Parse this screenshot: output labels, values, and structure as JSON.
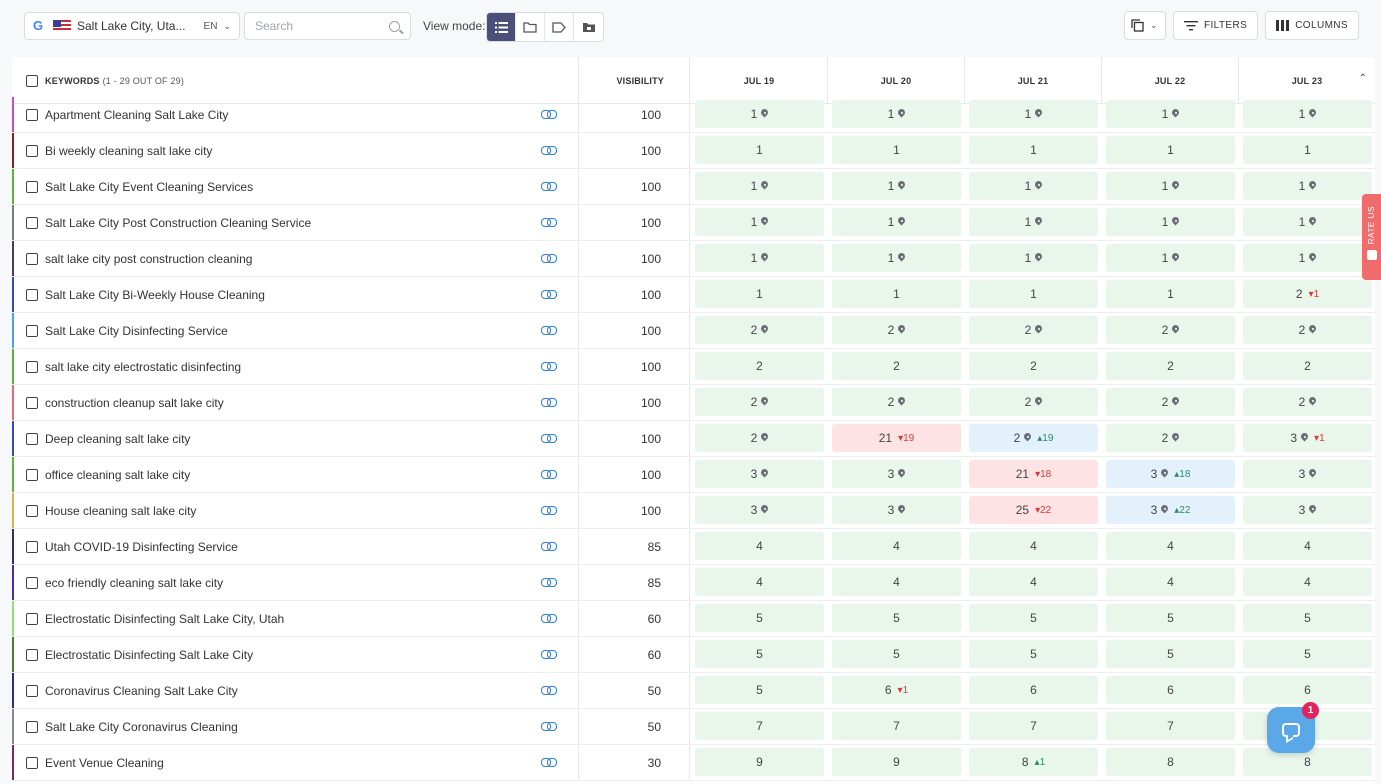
{
  "toolbar": {
    "location": "Salt Lake City, Utah",
    "location_display": "Salt Lake City, Uta...",
    "language": "EN",
    "search_placeholder": "Search",
    "view_mode_label": "View mode:",
    "view_modes": [
      "list",
      "folder",
      "tag",
      "group"
    ],
    "filters_label": "FILTERS",
    "columns_label": "COLUMNS"
  },
  "table": {
    "keywords_header": "KEYWORDS",
    "keywords_count": "(1 - 29 OUT OF 29)",
    "visibility_header": "VISIBILITY",
    "dates": [
      "JUL 19",
      "JUL 20",
      "JUL 21",
      "JUL 22",
      "JUL 23"
    ],
    "rows": [
      {
        "keyword": "Apartment Cleaning Salt Lake City",
        "color": "#c84fb6",
        "visibility": "100",
        "positions": [
          {
            "v": "1",
            "pin": true,
            "bg": "green"
          },
          {
            "v": "1",
            "pin": true,
            "bg": "green"
          },
          {
            "v": "1",
            "pin": true,
            "bg": "green"
          },
          {
            "v": "1",
            "pin": true,
            "bg": "green"
          },
          {
            "v": "1",
            "pin": true,
            "bg": "green"
          }
        ]
      },
      {
        "keyword": "Bi weekly cleaning salt lake city",
        "color": "#8a2020",
        "visibility": "100",
        "positions": [
          {
            "v": "1",
            "bg": "green"
          },
          {
            "v": "1",
            "bg": "green"
          },
          {
            "v": "1",
            "bg": "green"
          },
          {
            "v": "1",
            "bg": "green"
          },
          {
            "v": "1",
            "bg": "green"
          }
        ]
      },
      {
        "keyword": "Salt Lake City Event Cleaning Services",
        "color": "#5fb33a",
        "visibility": "100",
        "positions": [
          {
            "v": "1",
            "pin": true,
            "bg": "green"
          },
          {
            "v": "1",
            "pin": true,
            "bg": "green"
          },
          {
            "v": "1",
            "pin": true,
            "bg": "green"
          },
          {
            "v": "1",
            "pin": true,
            "bg": "green"
          },
          {
            "v": "1",
            "pin": true,
            "bg": "green"
          }
        ]
      },
      {
        "keyword": "Salt Lake City Post Construction Cleaning Service",
        "color": "#7a7a7a",
        "visibility": "100",
        "positions": [
          {
            "v": "1",
            "pin": true,
            "bg": "green"
          },
          {
            "v": "1",
            "pin": true,
            "bg": "green"
          },
          {
            "v": "1",
            "pin": true,
            "bg": "green"
          },
          {
            "v": "1",
            "pin": true,
            "bg": "green"
          },
          {
            "v": "1",
            "pin": true,
            "bg": "green"
          }
        ]
      },
      {
        "keyword": "salt lake city post construction cleaning",
        "color": "#4a3c52",
        "visibility": "100",
        "positions": [
          {
            "v": "1",
            "pin": true,
            "bg": "green"
          },
          {
            "v": "1",
            "pin": true,
            "bg": "green"
          },
          {
            "v": "1",
            "pin": true,
            "bg": "green"
          },
          {
            "v": "1",
            "pin": true,
            "bg": "green"
          },
          {
            "v": "1",
            "pin": true,
            "bg": "green"
          }
        ]
      },
      {
        "keyword": "Salt Lake City Bi-Weekly House Cleaning",
        "color": "#3a4bb5",
        "visibility": "100",
        "positions": [
          {
            "v": "1",
            "bg": "green"
          },
          {
            "v": "1",
            "bg": "green"
          },
          {
            "v": "1",
            "bg": "green"
          },
          {
            "v": "1",
            "bg": "green"
          },
          {
            "v": "2",
            "bg": "green",
            "change": "1",
            "dir": "down"
          }
        ]
      },
      {
        "keyword": "Salt Lake City Disinfecting Service",
        "color": "#4aa3e0",
        "visibility": "100",
        "positions": [
          {
            "v": "2",
            "pin": true,
            "bg": "green"
          },
          {
            "v": "2",
            "pin": true,
            "bg": "green"
          },
          {
            "v": "2",
            "pin": true,
            "bg": "green"
          },
          {
            "v": "2",
            "pin": true,
            "bg": "green"
          },
          {
            "v": "2",
            "pin": true,
            "bg": "green"
          }
        ]
      },
      {
        "keyword": "salt lake city electrostatic disinfecting",
        "color": "#5fb33a",
        "visibility": "100",
        "positions": [
          {
            "v": "2",
            "bg": "green"
          },
          {
            "v": "2",
            "bg": "green"
          },
          {
            "v": "2",
            "bg": "green"
          },
          {
            "v": "2",
            "bg": "green"
          },
          {
            "v": "2",
            "bg": "green"
          }
        ]
      },
      {
        "keyword": "construction cleanup salt lake city",
        "color": "#e06a7a",
        "visibility": "100",
        "positions": [
          {
            "v": "2",
            "pin": true,
            "bg": "green"
          },
          {
            "v": "2",
            "pin": true,
            "bg": "green"
          },
          {
            "v": "2",
            "pin": true,
            "bg": "green"
          },
          {
            "v": "2",
            "pin": true,
            "bg": "green"
          },
          {
            "v": "2",
            "pin": true,
            "bg": "green"
          }
        ]
      },
      {
        "keyword": "Deep cleaning salt lake city",
        "color": "#3a4bb5",
        "visibility": "100",
        "positions": [
          {
            "v": "2",
            "pin": true,
            "bg": "green"
          },
          {
            "v": "21",
            "bg": "red",
            "change": "19",
            "dir": "down"
          },
          {
            "v": "2",
            "pin": true,
            "bg": "blue",
            "change": "19",
            "dir": "up"
          },
          {
            "v": "2",
            "pin": true,
            "bg": "green"
          },
          {
            "v": "3",
            "pin": true,
            "bg": "green",
            "change": "1",
            "dir": "down"
          }
        ]
      },
      {
        "keyword": "office cleaning salt lake city",
        "color": "#5fb33a",
        "visibility": "100",
        "positions": [
          {
            "v": "3",
            "pin": true,
            "bg": "green"
          },
          {
            "v": "3",
            "pin": true,
            "bg": "green"
          },
          {
            "v": "21",
            "bg": "red",
            "change": "18",
            "dir": "down"
          },
          {
            "v": "3",
            "pin": true,
            "bg": "blue",
            "change": "18",
            "dir": "up"
          },
          {
            "v": "3",
            "pin": true,
            "bg": "green"
          }
        ]
      },
      {
        "keyword": "House cleaning salt lake city",
        "color": "#e0b040",
        "visibility": "100",
        "positions": [
          {
            "v": "3",
            "pin": true,
            "bg": "green"
          },
          {
            "v": "3",
            "pin": true,
            "bg": "green"
          },
          {
            "v": "25",
            "bg": "red",
            "change": "22",
            "dir": "down"
          },
          {
            "v": "3",
            "pin": true,
            "bg": "blue",
            "change": "22",
            "dir": "up"
          },
          {
            "v": "3",
            "pin": true,
            "bg": "green"
          }
        ]
      },
      {
        "keyword": "Utah COVID-19 Disinfecting Service",
        "color": "#3a2c60",
        "visibility": "85",
        "positions": [
          {
            "v": "4",
            "bg": "green"
          },
          {
            "v": "4",
            "bg": "green"
          },
          {
            "v": "4",
            "bg": "green"
          },
          {
            "v": "4",
            "bg": "green"
          },
          {
            "v": "4",
            "bg": "green"
          }
        ]
      },
      {
        "keyword": "eco friendly cleaning salt lake city",
        "color": "#4a2cb5",
        "visibility": "85",
        "positions": [
          {
            "v": "4",
            "bg": "green"
          },
          {
            "v": "4",
            "bg": "green"
          },
          {
            "v": "4",
            "bg": "green"
          },
          {
            "v": "4",
            "bg": "green"
          },
          {
            "v": "4",
            "bg": "green"
          }
        ]
      },
      {
        "keyword": "Electrostatic Disinfecting Salt Lake City, Utah",
        "color": "#8ee07a",
        "visibility": "60",
        "positions": [
          {
            "v": "5",
            "bg": "green"
          },
          {
            "v": "5",
            "bg": "green"
          },
          {
            "v": "5",
            "bg": "green"
          },
          {
            "v": "5",
            "bg": "green"
          },
          {
            "v": "5",
            "bg": "green"
          }
        ]
      },
      {
        "keyword": "Electrostatic Disinfecting Salt Lake City",
        "color": "#4a7a30",
        "visibility": "60",
        "positions": [
          {
            "v": "5",
            "bg": "green"
          },
          {
            "v": "5",
            "bg": "green"
          },
          {
            "v": "5",
            "bg": "green"
          },
          {
            "v": "5",
            "bg": "green"
          },
          {
            "v": "5",
            "bg": "green"
          }
        ]
      },
      {
        "keyword": "Coronavirus Cleaning Salt Lake City",
        "color": "#2a2c80",
        "visibility": "50",
        "positions": [
          {
            "v": "5",
            "bg": "green"
          },
          {
            "v": "6",
            "bg": "green",
            "change": "1",
            "dir": "down"
          },
          {
            "v": "6",
            "bg": "green"
          },
          {
            "v": "6",
            "bg": "green"
          },
          {
            "v": "6",
            "bg": "green"
          }
        ]
      },
      {
        "keyword": "Salt Lake City Coronavirus Cleaning",
        "color": "#8a8a8a",
        "visibility": "50",
        "positions": [
          {
            "v": "7",
            "bg": "green"
          },
          {
            "v": "7",
            "bg": "green"
          },
          {
            "v": "7",
            "bg": "green"
          },
          {
            "v": "7",
            "bg": "green"
          },
          {
            "v": "7",
            "bg": "green"
          }
        ]
      },
      {
        "keyword": "Event Venue Cleaning",
        "color": "#7a2a60",
        "visibility": "30",
        "positions": [
          {
            "v": "9",
            "bg": "green"
          },
          {
            "v": "9",
            "bg": "green"
          },
          {
            "v": "8",
            "bg": "green",
            "change": "1",
            "dir": "up"
          },
          {
            "v": "8",
            "bg": "green"
          },
          {
            "v": "8",
            "bg": "green"
          }
        ]
      }
    ]
  },
  "widgets": {
    "rate_us_label": "RATE US",
    "chat_badge_count": "1"
  },
  "colors": {
    "accent": "#4c4f78",
    "link": "#2f7bd6",
    "green_bg": "#e8f6eb",
    "red_bg": "#fde3e4",
    "blue_bg": "#e3f1fc",
    "down": "#d63a3a",
    "up": "#2c8c66"
  }
}
